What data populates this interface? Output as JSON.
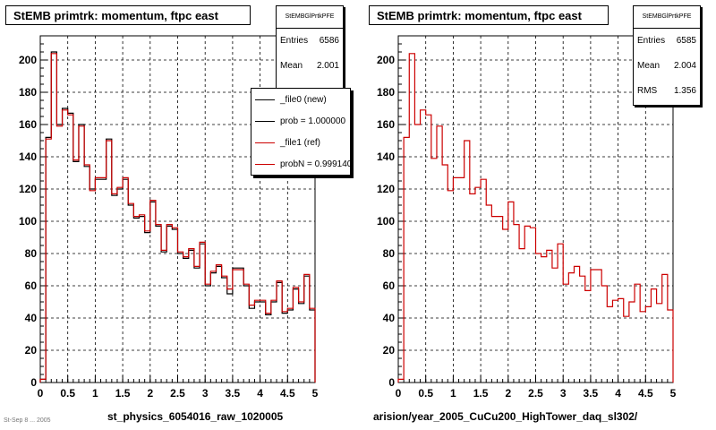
{
  "chart_data": [
    {
      "type": "histogram",
      "title": "StEMB primtrk: momentum, ftpc east",
      "xlabel": "st_physics_6054016_raw_1020005",
      "xlim": [
        0,
        5
      ],
      "ylim": [
        0,
        215
      ],
      "xticks": [
        "0",
        "0.5",
        "1",
        "1.5",
        "2",
        "2.5",
        "3",
        "3.5",
        "4",
        "4.5",
        "5"
      ],
      "yticks": [
        "0",
        "20",
        "40",
        "60",
        "80",
        "100",
        "120",
        "140",
        "160",
        "180",
        "200"
      ],
      "grid": true,
      "bin_width": 0.1,
      "series": [
        {
          "color": "#000000",
          "values": [
            2,
            152,
            205,
            160,
            170,
            167,
            137,
            160,
            134,
            120,
            126,
            126,
            151,
            116,
            120,
            126,
            110,
            102,
            103,
            93,
            112,
            97,
            81,
            97,
            95,
            80,
            77,
            82,
            71,
            86,
            60,
            68,
            72,
            65,
            55,
            71,
            71,
            60,
            46,
            50,
            50,
            42,
            50,
            62,
            43,
            45,
            58,
            49,
            66,
            45
          ]
        },
        {
          "color": "#cc0000",
          "values": [
            2,
            151,
            204,
            159,
            169,
            166,
            138,
            159,
            135,
            119,
            127,
            127,
            150,
            117,
            121,
            127,
            111,
            103,
            104,
            94,
            113,
            98,
            82,
            98,
            96,
            81,
            78,
            83,
            72,
            87,
            61,
            69,
            73,
            66,
            58,
            70,
            70,
            61,
            48,
            51,
            51,
            43,
            51,
            63,
            44,
            46,
            59,
            50,
            67,
            46
          ]
        }
      ],
      "stats": {
        "name": "StEMBGlPrtkPFE",
        "rows": [
          {
            "label": "Entries",
            "value": "6586"
          },
          {
            "label": "Mean",
            "value": "2.001"
          }
        ]
      },
      "legend": [
        {
          "label": "_file0 (new)",
          "color": "#000000"
        },
        {
          "label": "prob = 1.000000",
          "color": "#000000"
        },
        {
          "label": "_file1 (ref)",
          "color": "#cc0000"
        },
        {
          "label": "probN = 0.999140",
          "color": "#cc0000"
        }
      ]
    },
    {
      "type": "histogram",
      "title": "StEMB primtrk: momentum, ftpc east",
      "xlabel": "arision/year_2005_CuCu200_HighTower_daq_sl302/",
      "xlim": [
        0,
        5
      ],
      "ylim": [
        0,
        215
      ],
      "xticks": [
        "0",
        "0.5",
        "1",
        "1.5",
        "2",
        "2.5",
        "3",
        "3.5",
        "4",
        "4.5",
        "5"
      ],
      "yticks": [
        "0",
        "20",
        "40",
        "60",
        "80",
        "100",
        "120",
        "140",
        "160",
        "180",
        "200"
      ],
      "grid": true,
      "bin_width": 0.1,
      "series": [
        {
          "color": "#cc0000",
          "values": [
            2,
            152,
            204,
            160,
            169,
            166,
            139,
            159,
            135,
            119,
            127,
            127,
            150,
            117,
            121,
            126,
            110,
            103,
            103,
            95,
            112,
            98,
            83,
            97,
            96,
            80,
            78,
            82,
            71,
            86,
            61,
            68,
            72,
            66,
            57,
            70,
            70,
            60,
            47,
            51,
            52,
            41,
            50,
            61,
            44,
            47,
            58,
            49,
            67,
            45
          ]
        }
      ],
      "stats": {
        "name": "StEMBGlPrtkPFE",
        "rows": [
          {
            "label": "Entries",
            "value": "6585"
          },
          {
            "label": "Mean",
            "value": "2.004"
          },
          {
            "label": "RMS",
            "value": "1.356"
          }
        ]
      }
    }
  ],
  "footnote": "St-Sep 8 ... 2005"
}
